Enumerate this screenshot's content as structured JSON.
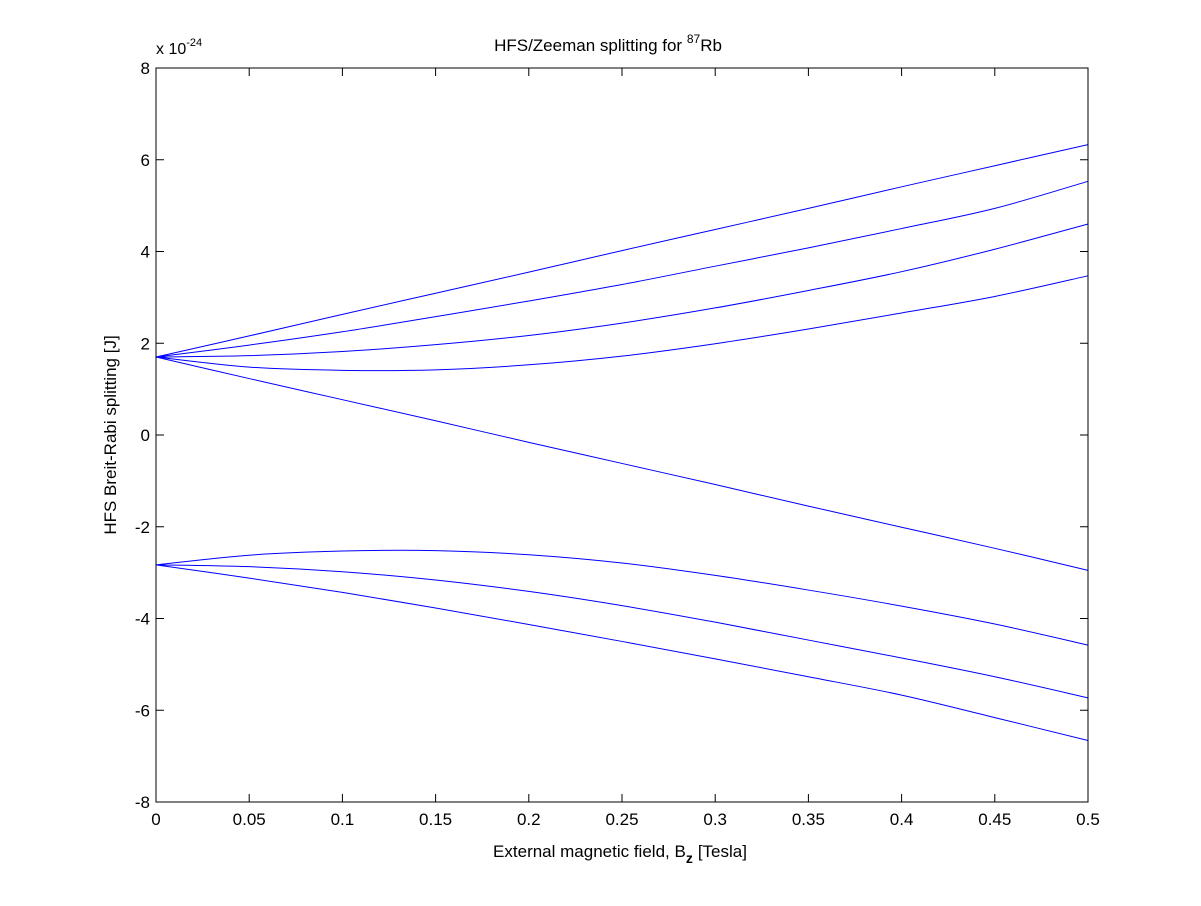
{
  "chart_data": {
    "type": "line",
    "title": "HFS/Zeeman splitting for",
    "title_isotope": "87",
    "title_element": "Rb",
    "xlabel": "External magnetic field, B",
    "xlabel_subscript": "z",
    "xlabel_unit": "[Tesla]",
    "ylabel": "HFS Breit-Rabi splitting [J]",
    "exponent_label": "x 10",
    "exponent_power": "-24",
    "xlim": [
      0,
      0.5
    ],
    "ylim": [
      -8,
      8
    ],
    "grid": false,
    "box": true,
    "line_color": "#0000ff",
    "x_ticks": [
      0,
      0.05,
      0.1,
      0.15,
      0.2,
      0.25,
      0.3,
      0.35,
      0.4,
      0.45,
      0.5
    ],
    "x_tick_labels": [
      "0",
      "0.05",
      "0.1",
      "0.15",
      "0.2",
      "0.25",
      "0.3",
      "0.35",
      "0.4",
      "0.45",
      "0.5"
    ],
    "y_ticks": [
      -8,
      -6,
      -4,
      -2,
      0,
      2,
      4,
      6,
      8
    ],
    "y_tick_labels": [
      "-8",
      "-6",
      "-4",
      "-2",
      "0",
      "2",
      "4",
      "6",
      "8"
    ],
    "x": [
      0,
      0.05,
      0.1,
      0.15,
      0.2,
      0.25,
      0.3,
      0.35,
      0.4,
      0.45,
      0.5
    ],
    "series": [
      {
        "values": [
          1.7,
          2.16,
          2.63,
          3.09,
          3.55,
          4.02,
          4.48,
          4.94,
          5.41,
          5.87,
          6.33
        ]
      },
      {
        "values": [
          1.7,
          1.96,
          2.25,
          2.58,
          2.92,
          3.28,
          3.68,
          4.08,
          4.5,
          4.94,
          5.53
        ]
      },
      {
        "values": [
          1.7,
          1.73,
          1.82,
          1.97,
          2.17,
          2.44,
          2.77,
          3.15,
          3.56,
          4.05,
          4.6
        ]
      },
      {
        "values": [
          1.7,
          1.48,
          1.41,
          1.42,
          1.53,
          1.72,
          1.99,
          2.31,
          2.66,
          3.02,
          3.47
        ]
      },
      {
        "values": [
          1.7,
          1.23,
          0.77,
          0.31,
          -0.16,
          -0.62,
          -1.08,
          -1.55,
          -2.01,
          -2.47,
          -2.95
        ]
      },
      {
        "values": [
          -2.83,
          -2.62,
          -2.53,
          -2.52,
          -2.61,
          -2.79,
          -3.06,
          -3.38,
          -3.73,
          -4.12,
          -4.58
        ]
      },
      {
        "values": [
          -2.83,
          -2.87,
          -2.98,
          -3.16,
          -3.41,
          -3.72,
          -4.08,
          -4.47,
          -4.86,
          -5.27,
          -5.73
        ]
      },
      {
        "values": [
          -2.83,
          -3.12,
          -3.43,
          -3.77,
          -4.13,
          -4.5,
          -4.88,
          -5.27,
          -5.67,
          -6.16,
          -6.66
        ]
      }
    ]
  }
}
